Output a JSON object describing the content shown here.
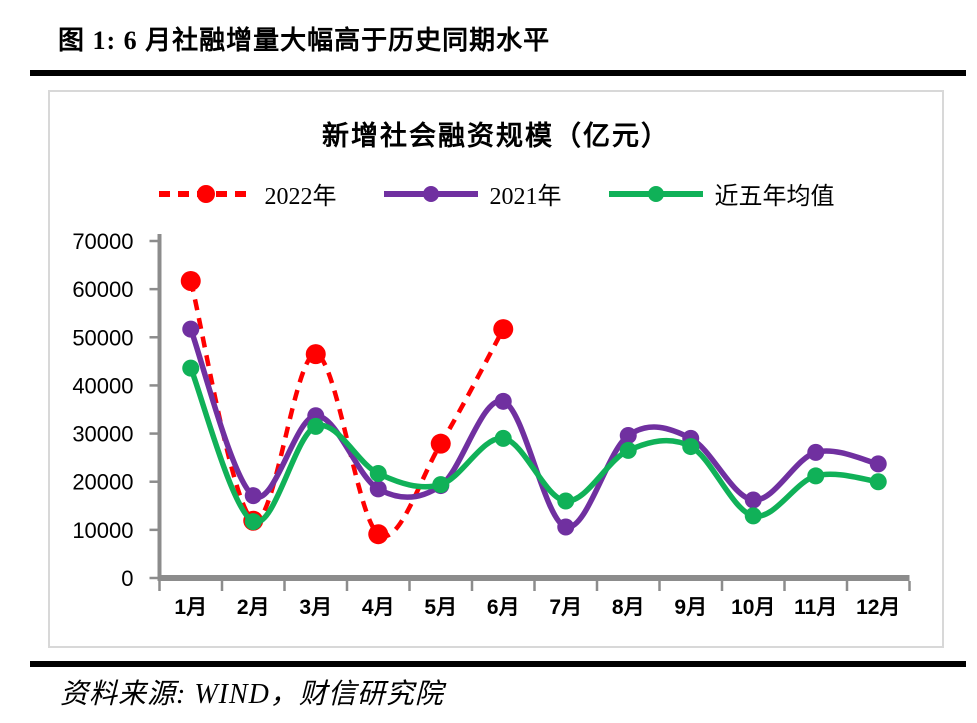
{
  "page": {
    "title": "图 1: 6 月社融增量大幅高于历史同期水平",
    "source": "资料来源: WIND，财信研究院"
  },
  "chart_data": {
    "type": "line",
    "title": "新增社会融资规模（亿元）",
    "categories": [
      "1月",
      "2月",
      "3月",
      "4月",
      "5月",
      "6月",
      "7月",
      "8月",
      "9月",
      "10月",
      "11月",
      "12月"
    ],
    "series": [
      {
        "name": "2022年",
        "color": "#FF0000",
        "line_style": "dashed",
        "values": [
          61700,
          11900,
          46500,
          9100,
          27900,
          51700,
          null,
          null,
          null,
          null,
          null,
          null
        ]
      },
      {
        "name": "2021年",
        "color": "#7030A0",
        "line_style": "solid",
        "values": [
          51700,
          17100,
          33700,
          18500,
          19200,
          36700,
          10600,
          29600,
          29000,
          16200,
          26100,
          23700
        ]
      },
      {
        "name": "近五年均值",
        "color": "#10B158",
        "line_style": "solid",
        "values": [
          43600,
          11700,
          31500,
          21700,
          19400,
          29000,
          16000,
          26500,
          27300,
          12900,
          21200,
          20000
        ]
      }
    ],
    "xlabel": "",
    "ylabel": "",
    "ylim": [
      0,
      70000
    ],
    "ytick_step": 10000,
    "yticks": [
      "0",
      "10000",
      "20000",
      "30000",
      "40000",
      "50000",
      "60000",
      "70000"
    ],
    "legend_position": "top",
    "grid": false,
    "axis_color": "#8C8C8C",
    "text_color": "#000000"
  }
}
